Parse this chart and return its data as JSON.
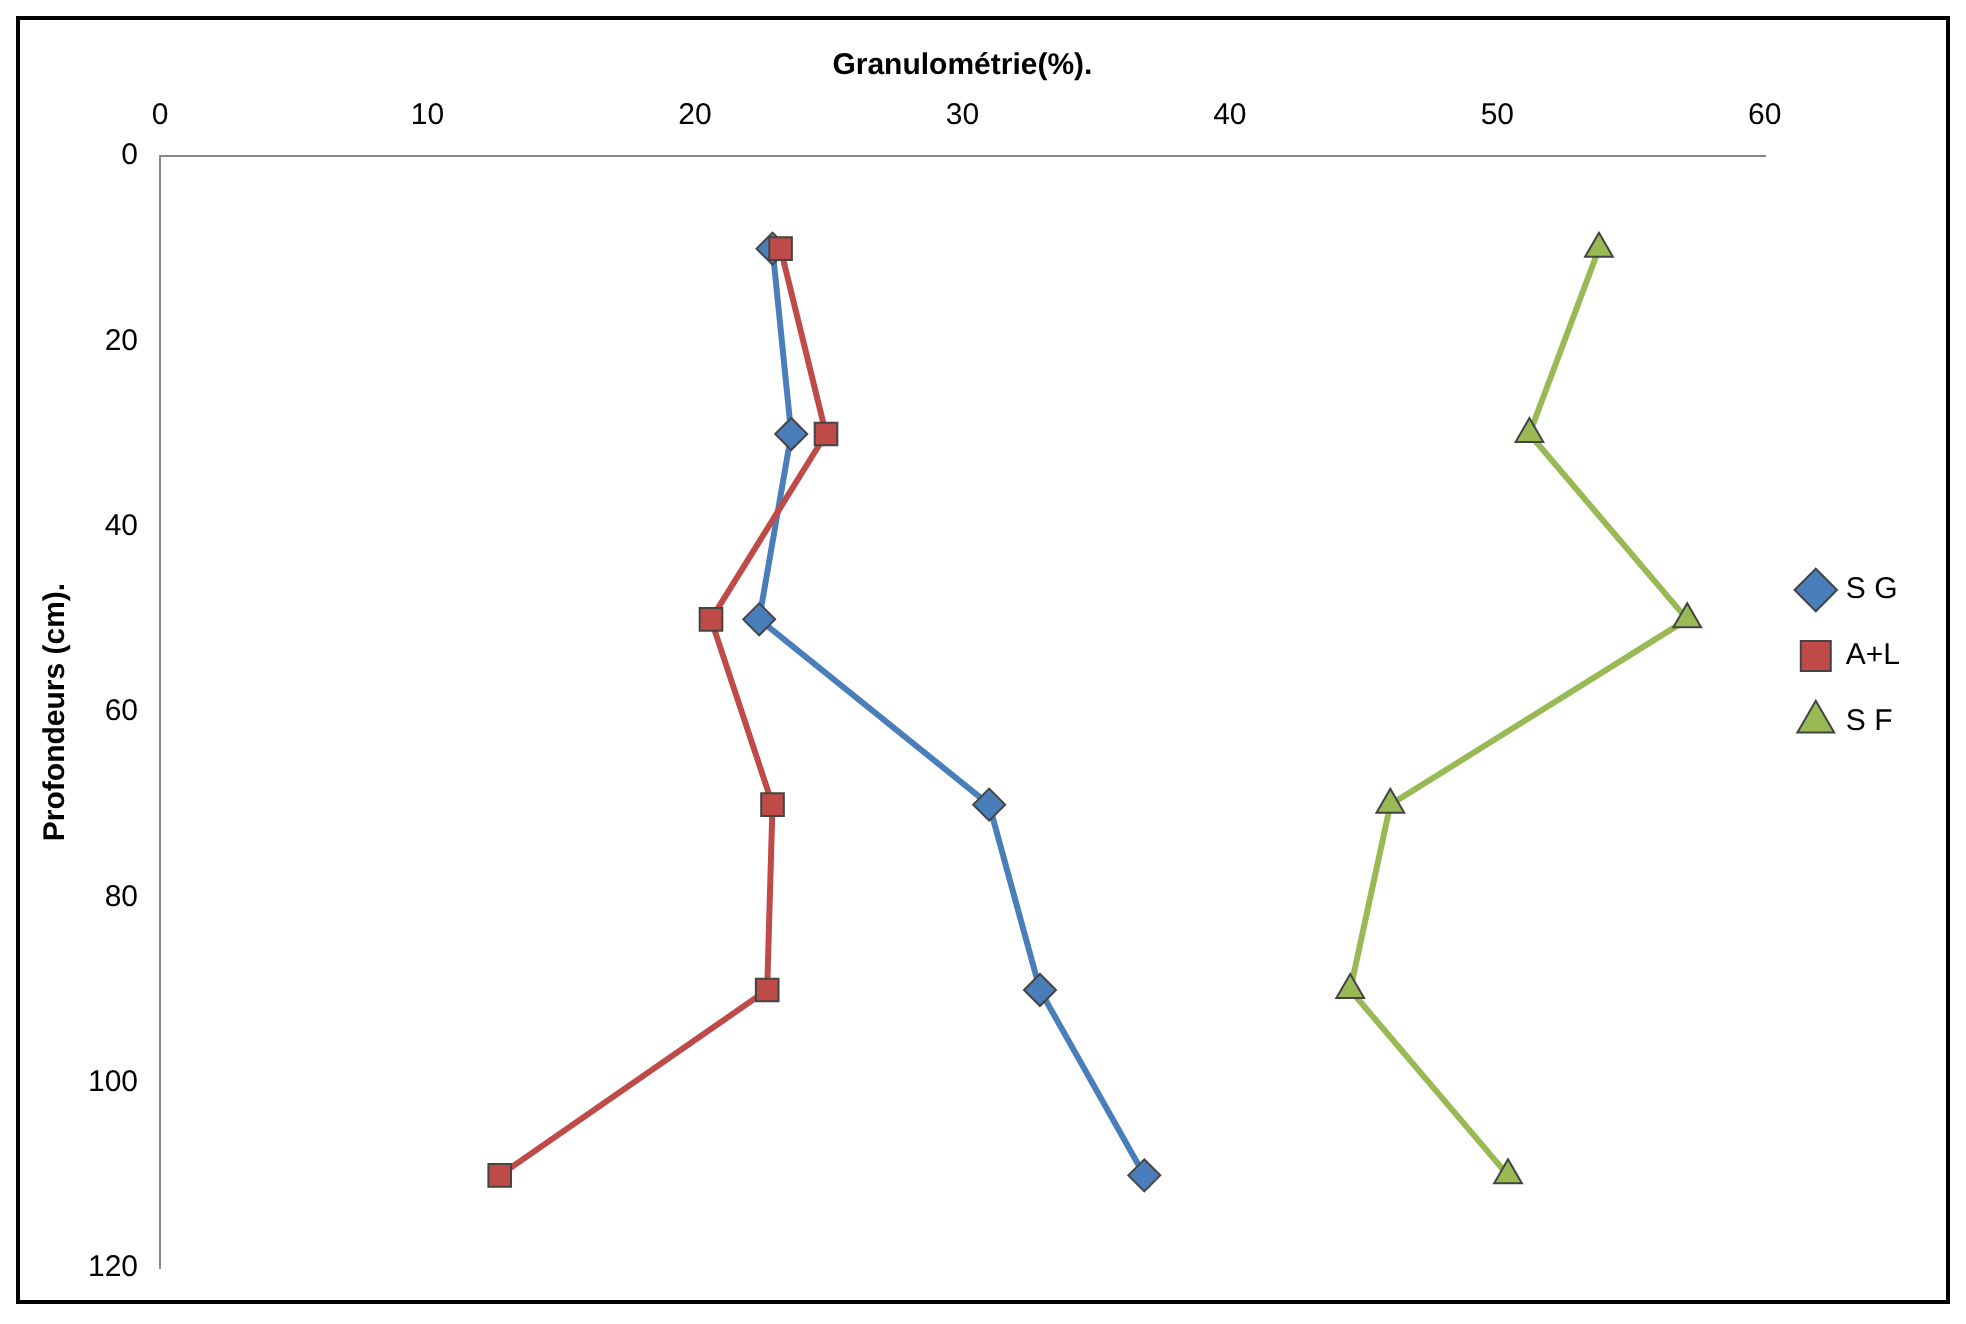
{
  "chart_data": {
    "type": "line",
    "xlabel": "Granulométrie(%).",
    "ylabel": "Profondeurs (cm).",
    "xlim": [
      0,
      60
    ],
    "xticks": [
      0,
      10,
      20,
      30,
      40,
      50,
      60
    ],
    "ylim": [
      120,
      0
    ],
    "yticks": [
      0,
      20,
      40,
      60,
      80,
      100,
      120
    ],
    "grid": false,
    "legend": "right",
    "series": [
      {
        "name": "S G",
        "color": "#4a7ebb",
        "marker": "diamond",
        "x": [
          22.9,
          23.6,
          22.4,
          31.0,
          32.9,
          36.8
        ],
        "values": [
          10,
          30,
          50,
          70,
          90,
          110
        ]
      },
      {
        "name": "A+L",
        "color": "#be4b48",
        "marker": "square",
        "x": [
          23.2,
          24.9,
          20.6,
          22.9,
          22.7,
          12.7
        ],
        "values": [
          10,
          30,
          50,
          70,
          90,
          110
        ]
      },
      {
        "name": "S F",
        "color": "#98b954",
        "marker": "triangle",
        "x": [
          53.8,
          51.2,
          57.1,
          46.0,
          44.5,
          50.4
        ],
        "values": [
          10,
          30,
          50,
          70,
          90,
          110
        ]
      }
    ]
  }
}
